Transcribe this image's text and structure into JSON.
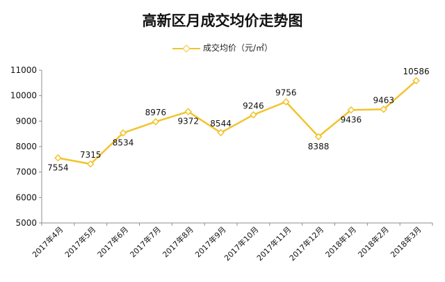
{
  "chart_data": {
    "type": "line",
    "title": "高新区月成交均价走势图",
    "categories": [
      "2017年4月",
      "2017年5月",
      "2017年6月",
      "2017年7月",
      "2017年8月",
      "2017年9月",
      "2017年10月",
      "2017年11月",
      "2017年12月",
      "2018年1月",
      "2018年2月",
      "2018年3月"
    ],
    "series": [
      {
        "name": "成交均价（元/㎡）",
        "values": [
          7554,
          7315,
          8534,
          8976,
          9372,
          8544,
          9246,
          9756,
          8388,
          9436,
          9463,
          10586
        ]
      }
    ],
    "ylim": [
      5000,
      11000
    ],
    "yticks": [
      5000,
      6000,
      7000,
      8000,
      9000,
      10000,
      11000
    ],
    "grid": false,
    "legend_position": "top-center",
    "line_color": "#f2c32c",
    "label_positions": [
      "below",
      "above",
      "below",
      "above",
      "below",
      "above",
      "above",
      "above",
      "below",
      "below",
      "above",
      "above"
    ]
  }
}
